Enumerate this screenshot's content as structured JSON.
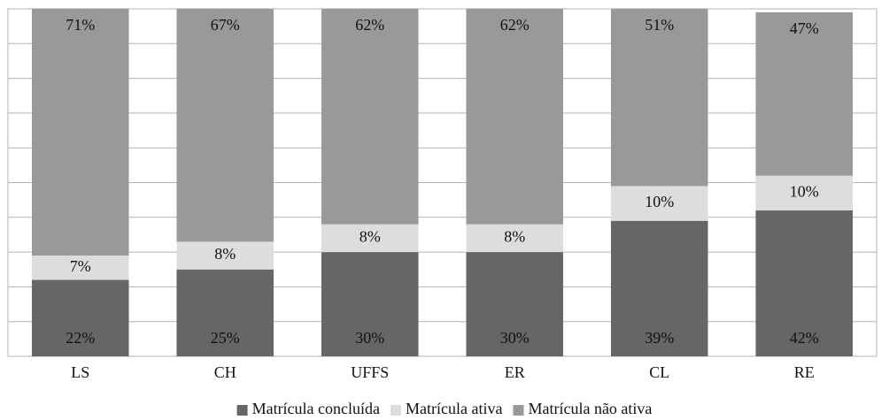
{
  "chart_data": {
    "type": "stacked_bar",
    "categories": [
      "LS",
      "CH",
      "UFFS",
      "ER",
      "CL",
      "RE"
    ],
    "series": [
      {
        "name": "Matrícula concluída",
        "color": "#666666",
        "values": [
          22,
          25,
          30,
          30,
          39,
          42
        ],
        "value_labels": [
          "22%",
          "25%",
          "30%",
          "30%",
          "39%",
          "42%"
        ]
      },
      {
        "name": "Matrícula ativa",
        "color": "#dddddd",
        "values": [
          7,
          8,
          8,
          8,
          10,
          10
        ],
        "value_labels": [
          "7%",
          "8%",
          "8%",
          "8%",
          "10%",
          "10%"
        ]
      },
      {
        "name": "Matrícula não ativa",
        "color": "#999999",
        "values": [
          71,
          67,
          62,
          62,
          51,
          47
        ],
        "value_labels": [
          "71%",
          "67%",
          "62%",
          "62%",
          "51%",
          "47%"
        ]
      }
    ],
    "ylim": [
      0,
      100
    ],
    "yticks": [
      0,
      10,
      20,
      30,
      40,
      50,
      60,
      70,
      80,
      90,
      100
    ],
    "grid": true,
    "legend": "bottom"
  }
}
